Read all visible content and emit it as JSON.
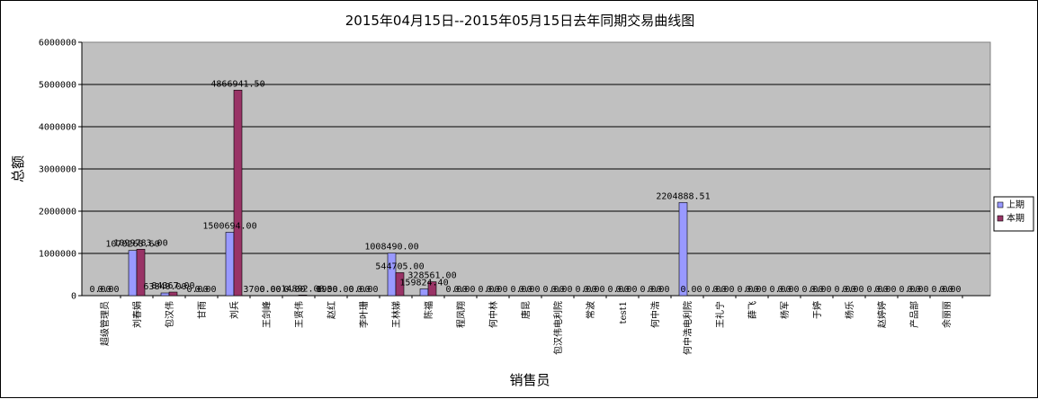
{
  "chart_data": {
    "type": "bar",
    "title": "2015年04月15日--2015年05月15日去年同期交易曲线图",
    "xlabel": "销售员",
    "ylabel": "总额",
    "ylim": [
      0,
      6000000
    ],
    "yticks": [
      "0",
      "1000000",
      "2000000",
      "3000000",
      "4000000",
      "5000000",
      "6000000"
    ],
    "grid": true,
    "legend_position": "right",
    "categories": [
      "超级管理员",
      "刘春娟",
      "包汉伟",
      "甘雨",
      "刘兵",
      "王剑峰",
      "王贤伟",
      "赵红",
      "李叶珊",
      "王林娣",
      "陈福",
      "程凤翔",
      "何中林",
      "唐昆",
      "包汉伟电利院",
      "常波",
      "test1",
      "何中浩",
      "何中浩电利院",
      "王礼宁",
      "薛飞",
      "杨军",
      "于婷",
      "杨乐",
      "赵婷婷",
      "产品部",
      "余丽丽"
    ],
    "series": [
      {
        "name": "上期",
        "color": "#9999ff",
        "values": [
          0,
          1070268.6,
          63840,
          0,
          1500694.0,
          3700,
          0,
          0,
          0,
          1008490.0,
          159824.4,
          0,
          0,
          0,
          0,
          0,
          0,
          0,
          2204888.51,
          0,
          0,
          0,
          0,
          0,
          0,
          0,
          0
        ],
        "labels": [
          "0.00",
          "1070268.60",
          "63840.00",
          "0.00",
          "1500694.00",
          "3700.00",
          "0.00",
          "0.00",
          "0.00",
          "1008490.00",
          "159824.40",
          "0.00",
          "0.00",
          "0.00",
          "0.00",
          "0.00",
          "0.00",
          "0.00",
          "2204888.51",
          "0.00",
          "0.00",
          "0.00",
          "0.00",
          "0.00",
          "0.00",
          "0.00",
          "0.00"
        ]
      },
      {
        "name": "本期",
        "color": "#993366",
        "values": [
          0,
          1099783.0,
          84367.0,
          0,
          4866941.5,
          0,
          14892.0,
          1950,
          0,
          544705.0,
          328561.0,
          0,
          0,
          0,
          0,
          0,
          0,
          0,
          0,
          0,
          0,
          0,
          0,
          0,
          0,
          0,
          0
        ],
        "labels": [
          "0.00",
          "1099783.00",
          "84367.00",
          "0.00",
          "4866941.50",
          "0.00",
          "14892.00",
          "1950.00",
          "0.00",
          "544705.00",
          "328561.00",
          "0.00",
          "0.00",
          "0.00",
          "0.00",
          "0.00",
          "0.00",
          "0.00",
          "0.00",
          "0.00",
          "0.00",
          "0.00",
          "0.00",
          "0.00",
          "0.00",
          "0.00",
          "0.00"
        ]
      }
    ]
  }
}
